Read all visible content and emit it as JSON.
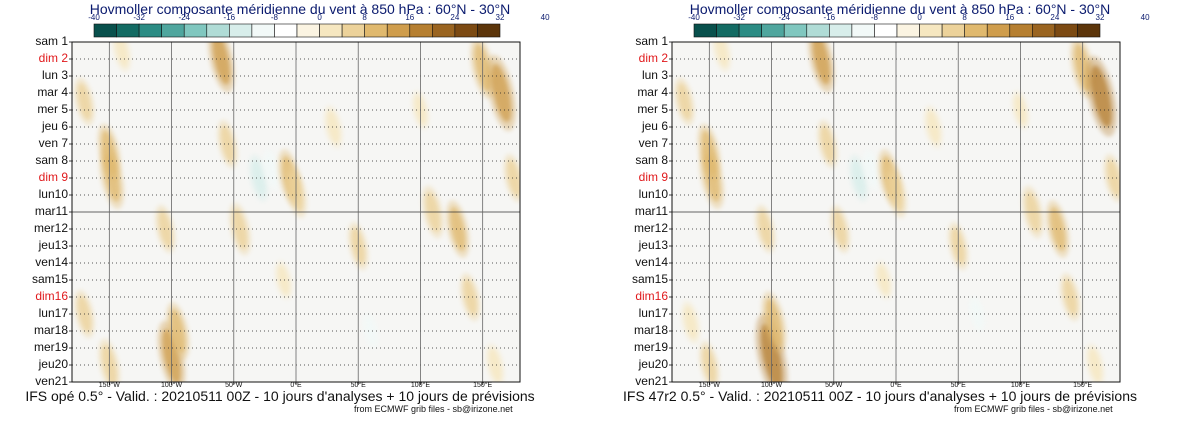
{
  "colors": {
    "scale": [
      "#08504c",
      "#136b63",
      "#2b8c84",
      "#4fa69e",
      "#80c7bf",
      "#b0dcd6",
      "#d8eeeb",
      "#f2f9f8",
      "#ffffff",
      "#fbf4e2",
      "#f6e7c0",
      "#ecd29a",
      "#e0b96e",
      "#cf9d4c",
      "#b67f30",
      "#9a6420",
      "#7c4a12",
      "#5c350a"
    ],
    "axis_title": "#0a1a6e",
    "sunday": "#e0191c"
  },
  "colorbar_ticks": [
    "-40",
    "-32",
    "-24",
    "-16",
    "-8",
    "0",
    "8",
    "16",
    "24",
    "32",
    "40"
  ],
  "days": [
    {
      "label": "sam 1",
      "sunday": false
    },
    {
      "label": "dim 2",
      "sunday": true
    },
    {
      "label": "lun 3",
      "sunday": false
    },
    {
      "label": "mar 4",
      "sunday": false
    },
    {
      "label": "mer 5",
      "sunday": false
    },
    {
      "label": "jeu 6",
      "sunday": false
    },
    {
      "label": "ven 7",
      "sunday": false
    },
    {
      "label": "sam 8",
      "sunday": false
    },
    {
      "label": "dim 9",
      "sunday": true
    },
    {
      "label": "lun10",
      "sunday": false
    },
    {
      "label": "mar11",
      "sunday": false
    },
    {
      "label": "mer12",
      "sunday": false
    },
    {
      "label": "jeu13",
      "sunday": false
    },
    {
      "label": "ven14",
      "sunday": false
    },
    {
      "label": "sam15",
      "sunday": false
    },
    {
      "label": "dim16",
      "sunday": true
    },
    {
      "label": "lun17",
      "sunday": false
    },
    {
      "label": "mar18",
      "sunday": false
    },
    {
      "label": "mer19",
      "sunday": false
    },
    {
      "label": "jeu20",
      "sunday": false
    },
    {
      "label": "ven21",
      "sunday": false
    }
  ],
  "lon_ticks": [
    "150°W",
    "100°W",
    "50°W",
    "0°E",
    "50°E",
    "100°E",
    "150°E"
  ],
  "panels": [
    {
      "title": "Hovmoller composante méridienne du vent à 850 hPa : 60°N - 30°N",
      "footer": "IFS opé 0.5° - Valid. : 20210511 00Z - 10 jours d'analyses + 10 jours de prévisions",
      "credit": "from ECMWF grib files - sb@irizone.net"
    },
    {
      "title": "Hovmoller composante méridienne du vent à 850 hPa : 60°N - 30°N",
      "footer": "IFS 47r2 0.5° - Valid. : 20210511 00Z - 10 jours d'analyses + 10 jours de prévisions",
      "credit": "from ECMWF grib files - sb@irizone.net"
    }
  ],
  "chart_data": [
    {
      "type": "heatmap",
      "title": "Hovmoller composante méridienne du vent à 850 hPa : 60°N - 30°N",
      "x_ticks": [
        "150°W",
        "100°W",
        "50°W",
        "0°E",
        "50°E",
        "100°E",
        "150°E"
      ],
      "y_categories": [
        "sam 1",
        "dim 2",
        "lun 3",
        "mar 4",
        "mer 5",
        "jeu 6",
        "ven 7",
        "sam 8",
        "dim 9",
        "lun10",
        "mar11",
        "mer12",
        "jeu13",
        "ven14",
        "sam15",
        "dim16",
        "lun17",
        "mar18",
        "mer19",
        "jeu20",
        "ven21"
      ],
      "color_scale": [
        -40,
        40
      ],
      "separator_day": "mar11",
      "grid": true,
      "features": [
        {
          "lon": -170,
          "day": 3.5,
          "value": 10
        },
        {
          "lon": -150,
          "day": 6.5,
          "value": 14
        },
        {
          "lon": -148,
          "day": 8.0,
          "value": 16
        },
        {
          "lon": -170,
          "day": 16.0,
          "value": 10
        },
        {
          "lon": -150,
          "day": 19.0,
          "value": 12
        },
        {
          "lon": -140,
          "day": 0.5,
          "value": 8
        },
        {
          "lon": -105,
          "day": 11.0,
          "value": 10
        },
        {
          "lon": -100,
          "day": 18.5,
          "value": 20
        },
        {
          "lon": -95,
          "day": 17.0,
          "value": 14
        },
        {
          "lon": -60,
          "day": 1.0,
          "value": 18
        },
        {
          "lon": -55,
          "day": 6.0,
          "value": 10
        },
        {
          "lon": -45,
          "day": 11.0,
          "value": 12
        },
        {
          "lon": -30,
          "day": 8.0,
          "value": -10
        },
        {
          "lon": -20,
          "day": 7.5,
          "value": -8
        },
        {
          "lon": -5,
          "day": 8.0,
          "value": 14
        },
        {
          "lon": 0,
          "day": 8.8,
          "value": 12
        },
        {
          "lon": -10,
          "day": 14.0,
          "value": 6
        },
        {
          "lon": 30,
          "day": 5.0,
          "value": 8
        },
        {
          "lon": 50,
          "day": 12.0,
          "value": 10
        },
        {
          "lon": 60,
          "day": 17.0,
          "value": -6
        },
        {
          "lon": 100,
          "day": 4.0,
          "value": 6
        },
        {
          "lon": 110,
          "day": 10.0,
          "value": 12
        },
        {
          "lon": 130,
          "day": 11.0,
          "value": 14
        },
        {
          "lon": 140,
          "day": 15.0,
          "value": 10
        },
        {
          "lon": 150,
          "day": 1.5,
          "value": 16
        },
        {
          "lon": 165,
          "day": 3.0,
          "value": 22
        },
        {
          "lon": 160,
          "day": 19.0,
          "value": 8
        },
        {
          "lon": 175,
          "day": 8.0,
          "value": 10
        }
      ]
    },
    {
      "type": "heatmap",
      "title": "Hovmoller composante méridienne du vent à 850 hPa : 60°N - 30°N",
      "x_ticks": [
        "150°W",
        "100°W",
        "50°W",
        "0°E",
        "50°E",
        "100°E",
        "150°E"
      ],
      "y_categories": [
        "sam 1",
        "dim 2",
        "lun 3",
        "mar 4",
        "mer 5",
        "jeu 6",
        "ven 7",
        "sam 8",
        "dim 9",
        "lun10",
        "mar11",
        "mer12",
        "jeu13",
        "ven14",
        "sam15",
        "dim16",
        "lun17",
        "mar18",
        "mer19",
        "jeu20",
        "ven21"
      ],
      "color_scale": [
        -40,
        40
      ],
      "separator_day": "mar11",
      "grid": true,
      "features": [
        {
          "lon": -170,
          "day": 3.5,
          "value": 10
        },
        {
          "lon": -150,
          "day": 6.5,
          "value": 14
        },
        {
          "lon": -148,
          "day": 8.0,
          "value": 16
        },
        {
          "lon": -165,
          "day": 16.5,
          "value": 8
        },
        {
          "lon": -150,
          "day": 19.0,
          "value": 10
        },
        {
          "lon": -140,
          "day": 0.5,
          "value": 8
        },
        {
          "lon": -105,
          "day": 11.0,
          "value": 10
        },
        {
          "lon": -100,
          "day": 18.5,
          "value": 26
        },
        {
          "lon": -98,
          "day": 16.5,
          "value": 16
        },
        {
          "lon": -60,
          "day": 1.0,
          "value": 18
        },
        {
          "lon": -55,
          "day": 6.0,
          "value": 10
        },
        {
          "lon": -45,
          "day": 11.0,
          "value": 10
        },
        {
          "lon": -30,
          "day": 8.0,
          "value": -10
        },
        {
          "lon": -20,
          "day": 7.5,
          "value": -8
        },
        {
          "lon": -5,
          "day": 8.0,
          "value": 14
        },
        {
          "lon": 0,
          "day": 8.8,
          "value": 12
        },
        {
          "lon": -10,
          "day": 14.0,
          "value": 6
        },
        {
          "lon": 30,
          "day": 5.0,
          "value": 8
        },
        {
          "lon": 50,
          "day": 12.0,
          "value": 10
        },
        {
          "lon": 65,
          "day": 16.0,
          "value": -6
        },
        {
          "lon": 100,
          "day": 4.0,
          "value": 6
        },
        {
          "lon": 110,
          "day": 10.0,
          "value": 12
        },
        {
          "lon": 130,
          "day": 11.0,
          "value": 14
        },
        {
          "lon": 140,
          "day": 15.0,
          "value": 10
        },
        {
          "lon": 150,
          "day": 1.5,
          "value": 16
        },
        {
          "lon": 165,
          "day": 3.2,
          "value": 24
        },
        {
          "lon": 160,
          "day": 19.0,
          "value": 8
        },
        {
          "lon": 175,
          "day": 8.0,
          "value": 10
        }
      ]
    }
  ]
}
